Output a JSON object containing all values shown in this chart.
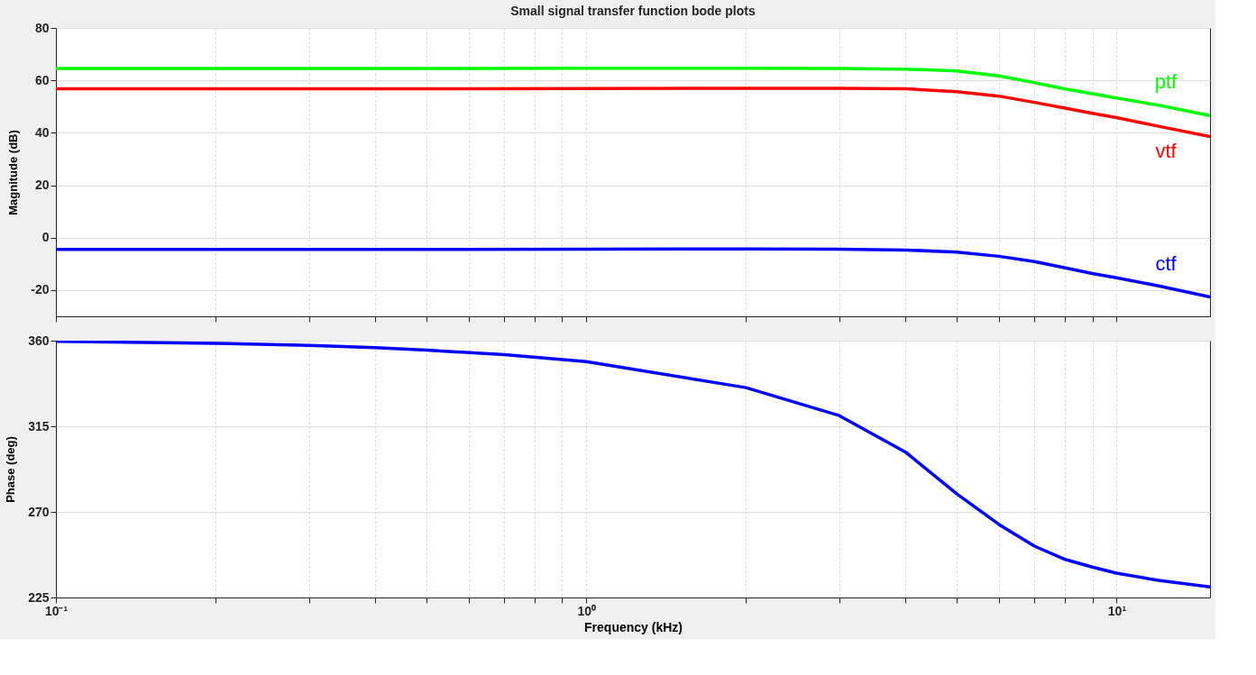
{
  "chart_data": [
    {
      "type": "line",
      "title": "Small signal transfer function bode plots",
      "ylabel": "Magnitude (dB)",
      "log": "x",
      "grid": true,
      "tick_labels": "y",
      "line_style": "solid",
      "marker": "none",
      "x": [
        0.1,
        0.2,
        0.5,
        1,
        2,
        3,
        4,
        5,
        6,
        7,
        8,
        9,
        10,
        12,
        15
      ],
      "xlim": [
        0.1,
        15
      ],
      "xticks": [
        {
          "value": 0.1,
          "label": null
        },
        {
          "value": 0.2,
          "label": null
        },
        {
          "value": 0.3,
          "label": null
        },
        {
          "value": 0.4,
          "label": null
        },
        {
          "value": 0.5,
          "label": null
        },
        {
          "value": 0.6,
          "label": null
        },
        {
          "value": 0.7,
          "label": null
        },
        {
          "value": 0.8,
          "label": null
        },
        {
          "value": 0.9,
          "label": null
        },
        {
          "value": 1,
          "label": null
        },
        {
          "value": 2,
          "label": null
        },
        {
          "value": 3,
          "label": null
        },
        {
          "value": 4,
          "label": null
        },
        {
          "value": 5,
          "label": null
        },
        {
          "value": 6,
          "label": null
        },
        {
          "value": 7,
          "label": null
        },
        {
          "value": 8,
          "label": null
        },
        {
          "value": 9,
          "label": null
        },
        {
          "value": 10,
          "label": null
        }
      ],
      "ylim": [
        -30,
        80
      ],
      "yticks": [
        -20,
        0,
        20,
        40,
        60,
        80
      ],
      "series": [
        {
          "name": "ptf",
          "color": "#00ff00",
          "values": [
            64.5,
            64.5,
            64.5,
            64.6,
            64.6,
            64.5,
            64.3,
            63.6,
            61.7,
            59.1,
            56.7,
            54.9,
            53.3,
            50.5,
            46.6
          ]
        },
        {
          "name": "vtf",
          "color": "#ff0000",
          "values": [
            56.8,
            56.8,
            56.8,
            56.9,
            57.0,
            57.0,
            56.8,
            55.7,
            54.0,
            51.6,
            49.4,
            47.4,
            45.8,
            42.5,
            38.6
          ]
        },
        {
          "name": "ctf",
          "color": "#0000ff",
          "values": [
            -4.5,
            -4.5,
            -4.5,
            -4.4,
            -4.3,
            -4.4,
            -4.7,
            -5.5,
            -7.1,
            -9.1,
            -11.5,
            -13.7,
            -15.3,
            -18.4,
            -22.6
          ]
        }
      ]
    },
    {
      "type": "line",
      "xlabel": "Frequency  (kHz)",
      "ylabel": "Phase (deg)",
      "log": "x",
      "grid": true,
      "line_style": "solid",
      "marker": "none",
      "x": [
        0.1,
        0.2,
        0.3,
        0.4,
        0.5,
        0.7,
        1,
        2,
        3,
        4,
        5,
        6,
        7,
        8,
        9,
        10,
        12,
        15
      ],
      "xlim": [
        0.1,
        15
      ],
      "xticks": [
        {
          "value": 0.1,
          "label": "10⁻¹"
        },
        {
          "value": 0.2,
          "label": null
        },
        {
          "value": 0.3,
          "label": null
        },
        {
          "value": 0.4,
          "label": null
        },
        {
          "value": 0.5,
          "label": null
        },
        {
          "value": 0.6,
          "label": null
        },
        {
          "value": 0.7,
          "label": null
        },
        {
          "value": 0.8,
          "label": null
        },
        {
          "value": 0.9,
          "label": null
        },
        {
          "value": 1,
          "label": "10⁰"
        },
        {
          "value": 2,
          "label": null
        },
        {
          "value": 3,
          "label": null
        },
        {
          "value": 4,
          "label": null
        },
        {
          "value": 5,
          "label": null
        },
        {
          "value": 6,
          "label": null
        },
        {
          "value": 7,
          "label": null
        },
        {
          "value": 8,
          "label": null
        },
        {
          "value": 9,
          "label": null
        },
        {
          "value": 10,
          "label": "10¹"
        }
      ],
      "ylim": [
        225,
        360
      ],
      "yticks": [
        225,
        270,
        315,
        360
      ],
      "series": [
        {
          "color": "#0000ff",
          "values": [
            359.6,
            358.6,
            357.5,
            356.3,
            355,
            352.7,
            349,
            335.3,
            320.6,
            301.4,
            279.4,
            263.4,
            252,
            245,
            241,
            237.8,
            234,
            230.5
          ]
        }
      ]
    }
  ]
}
